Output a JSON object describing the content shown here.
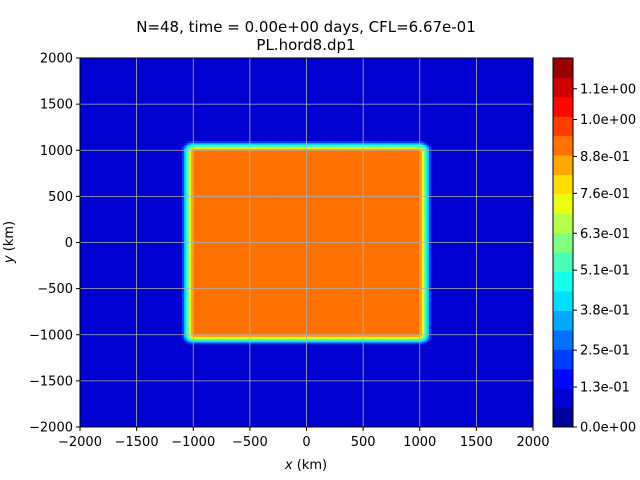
{
  "chart_data": {
    "type": "heatmap",
    "title_line1": "N=48, time = 0.00e+00 days, CFL=6.67e-01",
    "title_line2": "PL.hord8.dp1",
    "xlabel_var": "x",
    "xlabel_unit": " (km)",
    "ylabel_var": "y",
    "ylabel_unit": " (km)",
    "xlim": [
      -2000,
      2000
    ],
    "ylim": [
      -2000,
      2000
    ],
    "xticks": [
      -2000,
      -1500,
      -1000,
      -500,
      0,
      500,
      1000,
      1500,
      2000
    ],
    "xtick_labels": [
      "−2000",
      "−1500",
      "−1000",
      "−500",
      "0",
      "500",
      "1000",
      "1500",
      "2000"
    ],
    "yticks": [
      2000,
      1500,
      1000,
      500,
      0,
      -500,
      -1000,
      -1500,
      -2000
    ],
    "ytick_labels": [
      "2000",
      "1500",
      "1000",
      "500",
      "0",
      "−500",
      "−1000",
      "−1500",
      "−2000"
    ],
    "grid": true,
    "colormap": "jet",
    "field": {
      "background_value": 0.1,
      "block_value": 0.92,
      "block_x": [
        -1000,
        1000
      ],
      "block_y": [
        -1000,
        1000
      ],
      "edge_width_km": 110
    },
    "colorbar": {
      "vmin": 0.0,
      "vmax": 1.2,
      "levels": 19,
      "ticks": [
        0.0,
        0.13,
        0.25,
        0.38,
        0.51,
        0.63,
        0.76,
        0.88,
        1.0,
        1.1
      ],
      "tick_labels": [
        "0.0e+00",
        "1.3e-01",
        "2.5e-01",
        "3.8e-01",
        "5.1e-01",
        "6.3e-01",
        "7.6e-01",
        "8.8e-01",
        "1.0e+00",
        "1.1e+00"
      ]
    }
  }
}
